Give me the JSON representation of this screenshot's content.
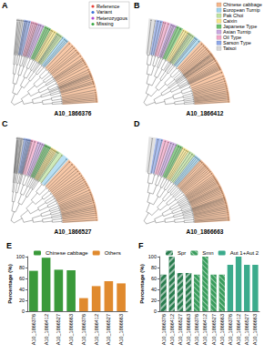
{
  "trees": {
    "panels": [
      {
        "label": "A",
        "marker": "A10_1866376"
      },
      {
        "label": "B",
        "marker": "A10_1866412"
      },
      {
        "label": "C",
        "marker": "A10_1866527"
      },
      {
        "label": "D",
        "marker": "A10_1866663"
      }
    ],
    "genotype_legend": [
      {
        "name": "Reference",
        "color": "#e8423a"
      },
      {
        "name": "Variant",
        "color": "#3a6fd8"
      },
      {
        "name": "Heterozygous",
        "color": "#b04ad0"
      },
      {
        "name": "Missing",
        "color": "#3aa845"
      }
    ],
    "group_legend": [
      {
        "name": "Chinese cabbage",
        "color": "#f5b58a"
      },
      {
        "name": "European Turnip",
        "color": "#9fd4f0"
      },
      {
        "name": "Pak Choi",
        "color": "#bfe3a0"
      },
      {
        "name": "Caixin",
        "color": "#f7e58a"
      },
      {
        "name": "Japanese Type",
        "color": "#6cc06c"
      },
      {
        "name": "Asian Turnip",
        "color": "#c9a8e0"
      },
      {
        "name": "Oil Type",
        "color": "#f2a7c8"
      },
      {
        "name": "Sarson Type",
        "color": "#8fa8e8"
      },
      {
        "name": "Tatsoi",
        "color": "#d8d8d8"
      }
    ]
  },
  "chart_data": [
    {
      "type": "bar",
      "label": "E",
      "categories": [
        "A10_1866376",
        "A10_1866412",
        "A10_1866527",
        "A10_1866663"
      ],
      "ylabel": "Percentage (%)",
      "ylim": [
        0,
        100
      ],
      "yticks": [
        0,
        20,
        40,
        60,
        80,
        100
      ],
      "legend": "top",
      "series": [
        {
          "name": "Chinese cabbage",
          "color": "#3a9a3a",
          "values": [
            74,
            98,
            76,
            75
          ]
        },
        {
          "name": "Others",
          "color": "#e08a2e",
          "values": [
            24,
            46,
            55,
            51
          ]
        }
      ]
    },
    {
      "type": "bar",
      "label": "F",
      "categories": [
        "A10_1866376",
        "A10_1866412",
        "A10_1866527",
        "A10_1866663"
      ],
      "ylabel": "Percentage (%)",
      "ylim": [
        0,
        100
      ],
      "yticks": [
        0,
        20,
        40,
        60,
        80,
        100
      ],
      "legend": "top",
      "series": [
        {
          "name": "Spr",
          "color": "#2a7d4f",
          "values": [
            67,
            100,
            70,
            70
          ]
        },
        {
          "name": "Smn",
          "color": "#3a9d5d",
          "values": [
            67,
            100,
            67,
            67
          ]
        },
        {
          "name": "Aut 1+Aut 2",
          "color": "#3bab8c",
          "values": [
            85,
            100,
            85,
            85
          ]
        }
      ]
    }
  ]
}
